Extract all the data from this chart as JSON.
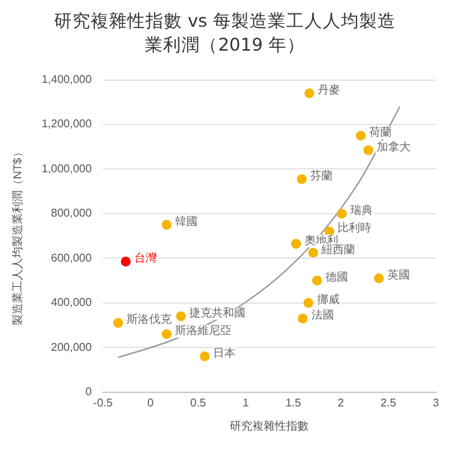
{
  "chart_data": {
    "type": "scatter",
    "title": "研究複雜性指數 vs 每製造業工人人均製造業利潤（2019 年）",
    "xlabel": "研究複雜性指數",
    "ylabel": "製造業工人人均製造業利潤（NT$）",
    "xlim": [
      -0.5,
      3
    ],
    "xticks": [
      -0.5,
      0,
      0.5,
      1,
      1.5,
      2,
      2.5,
      3
    ],
    "ylim": [
      0,
      1400000
    ],
    "yticks": [
      0,
      {
        "value": 200000,
        "label": "200,000"
      },
      {
        "value": 400000,
        "label": "400,000"
      },
      {
        "value": 600000,
        "label": "600,000"
      },
      {
        "value": 800000,
        "label": "800,000"
      },
      {
        "value": 1000000,
        "label": "1,000,000"
      },
      {
        "value": 1200000,
        "label": "1,200,000"
      },
      {
        "value": 1400000,
        "label": "1,400,000"
      }
    ],
    "grid": "y",
    "legend": false,
    "series": [
      {
        "type": "scatter",
        "marker": "circle",
        "x": [
          1.67,
          2.21,
          2.29,
          1.59,
          2.01,
          1.88,
          1.53,
          1.71,
          2.4,
          1.75,
          1.66,
          1.6,
          0.17,
          -0.26,
          -0.34,
          0.32,
          0.17,
          0.57
        ],
        "values": [
          1340000,
          1150000,
          1085000,
          955000,
          800000,
          720000,
          665000,
          625000,
          510000,
          500000,
          400000,
          330000,
          750000,
          585000,
          310000,
          340000,
          260000,
          160000
        ],
        "colors": [
          "#f5b400",
          "#f5b400",
          "#f5b400",
          "#f5b400",
          "#f5b400",
          "#f5b400",
          "#f5b400",
          "#f5b400",
          "#f5b400",
          "#f5b400",
          "#f5b400",
          "#f5b400",
          "#f5b400",
          "#ff0000",
          "#f5b400",
          "#f5b400",
          "#f5b400",
          "#f5b400"
        ]
      },
      {
        "type": "line",
        "color": "#999999",
        "x": [
          -0.34,
          0.2,
          0.6,
          1.0,
          1.4,
          1.8,
          2.2,
          2.62
        ],
        "values": [
          155000,
          228000,
          303000,
          403000,
          536000,
          713000,
          948000,
          1280000
        ]
      }
    ],
    "annotations": [
      {
        "text": "丹麥",
        "x": 1.67,
        "y": 1340000
      },
      {
        "text": "荷蘭",
        "x": 2.21,
        "y": 1150000
      },
      {
        "text": "加拿大",
        "x": 2.29,
        "y": 1085000
      },
      {
        "text": "芬蘭",
        "x": 1.59,
        "y": 955000
      },
      {
        "text": "瑞典",
        "x": 2.01,
        "y": 800000
      },
      {
        "text": "比利時",
        "x": 1.88,
        "y": 720000
      },
      {
        "text": "奧地利",
        "x": 1.53,
        "y": 665000
      },
      {
        "text": "紐西蘭",
        "x": 1.71,
        "y": 625000
      },
      {
        "text": "英國",
        "x": 2.4,
        "y": 510000
      },
      {
        "text": "德國",
        "x": 1.75,
        "y": 500000
      },
      {
        "text": "挪威",
        "x": 1.66,
        "y": 400000
      },
      {
        "text": "法國",
        "x": 1.6,
        "y": 330000
      },
      {
        "text": "韓國",
        "x": 0.17,
        "y": 750000
      },
      {
        "text": "台灣",
        "x": -0.26,
        "y": 585000
      },
      {
        "text": "斯洛伐克",
        "x": -0.34,
        "y": 310000
      },
      {
        "text": "捷克共和國",
        "x": 0.32,
        "y": 340000
      },
      {
        "text": "斯洛維尼亞",
        "x": 0.17,
        "y": 260000
      },
      {
        "text": "日本",
        "x": 0.57,
        "y": 160000
      }
    ]
  }
}
